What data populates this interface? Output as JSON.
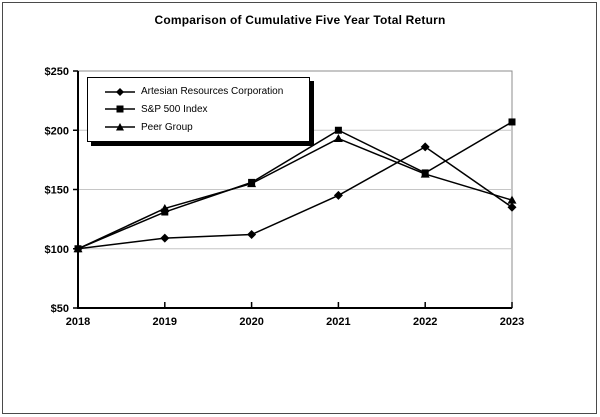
{
  "figure": {
    "title": "Comparison of Cumulative Five Year Total Return"
  },
  "chart_data": {
    "type": "line",
    "title": "Comparison of Cumulative Five Year Total Return",
    "x": [
      2018,
      2019,
      2020,
      2021,
      2022,
      2023
    ],
    "x_labels": [
      "2018",
      "2019",
      "2020",
      "2021",
      "2022",
      "2023"
    ],
    "y_ticks": [
      50,
      100,
      150,
      200,
      250
    ],
    "y_tick_labels": [
      "$50",
      "$100",
      "$150",
      "$200",
      "$250"
    ],
    "ylim": [
      50,
      250
    ],
    "grid": "horizontal",
    "legend_position": "top-left-inside",
    "colors": {
      "series": "#000000",
      "gridline": "#c6c6c6",
      "plot_border": "#8c8c8c",
      "axis": "#000000",
      "background": "#ffffff"
    },
    "series": [
      {
        "name": "Artesian Resources Corporation",
        "marker": "diamond",
        "color": "#000000",
        "values": [
          100,
          109,
          112,
          145,
          186,
          135
        ]
      },
      {
        "name": "S&P 500 Index",
        "marker": "square",
        "color": "#000000",
        "values": [
          100,
          131,
          156,
          200,
          164,
          207
        ]
      },
      {
        "name": "Peer Group",
        "marker": "triangle",
        "color": "#000000",
        "values": [
          100,
          134,
          155,
          193,
          163,
          141
        ]
      }
    ]
  }
}
